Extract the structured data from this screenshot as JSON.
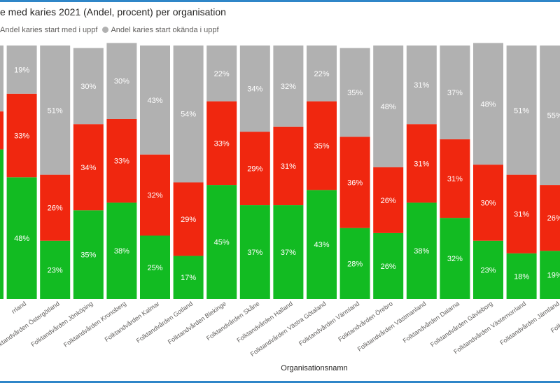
{
  "chart_data": {
    "type": "bar",
    "stacked": "percent",
    "title": "e med karies 2021 (Andel, procent) per organisation",
    "xlabel": "Organisationsnamn",
    "ylabel": "",
    "ylim": [
      0,
      100
    ],
    "grid": false,
    "legend_position": "top-left",
    "legend_entries": [
      {
        "name": "Andel karies start med i uppf",
        "color": "#f0270f"
      },
      {
        "name": "Andel karies start okända i uppf",
        "color": "#b1b1b1"
      }
    ],
    "categories": [
      "",
      "rrland",
      "Folktandvården Östergötland",
      "Folktandvården Jönköping",
      "Folktandvården Kronoberg",
      "Folktandvården Kalmar",
      "Folktandvården Gotland",
      "Folktandvården Blekinge",
      "Folktandvården Skåne",
      "Folktandvården Halland",
      "Folktandvården Västra Götaland",
      "Folktandvården Värmland",
      "Folktandvården Örebro",
      "Folktandvården Västmanland",
      "Folktandvården Dalarna",
      "Folktandvården Gävleborg",
      "Folktandvården Västernorrland",
      "Folktandvården Jämtland",
      "Folktandvården V"
    ],
    "series": [
      {
        "name": "",
        "color": "#12bb22",
        "values": [
          null,
          48,
          23,
          35,
          38,
          25,
          17,
          45,
          37,
          37,
          43,
          28,
          26,
          38,
          32,
          23,
          18,
          19,
          null
        ]
      },
      {
        "name": "Andel karies start med i uppf",
        "color": "#f0270f",
        "values": [
          null,
          33,
          26,
          34,
          33,
          32,
          29,
          33,
          29,
          31,
          35,
          36,
          26,
          31,
          31,
          30,
          31,
          26,
          null
        ]
      },
      {
        "name": "Andel karies start okända i uppf",
        "color": "#b1b1b1",
        "values": [
          null,
          19,
          51,
          30,
          30,
          43,
          54,
          22,
          34,
          32,
          22,
          35,
          48,
          31,
          37,
          48,
          51,
          55,
          null
        ]
      }
    ],
    "cutoff_bars": {
      "first": {
        "green": 59,
        "red": 15,
        "gray": 26
      },
      "last": {
        "green": 19,
        "red": 26,
        "gray": 55
      }
    }
  }
}
